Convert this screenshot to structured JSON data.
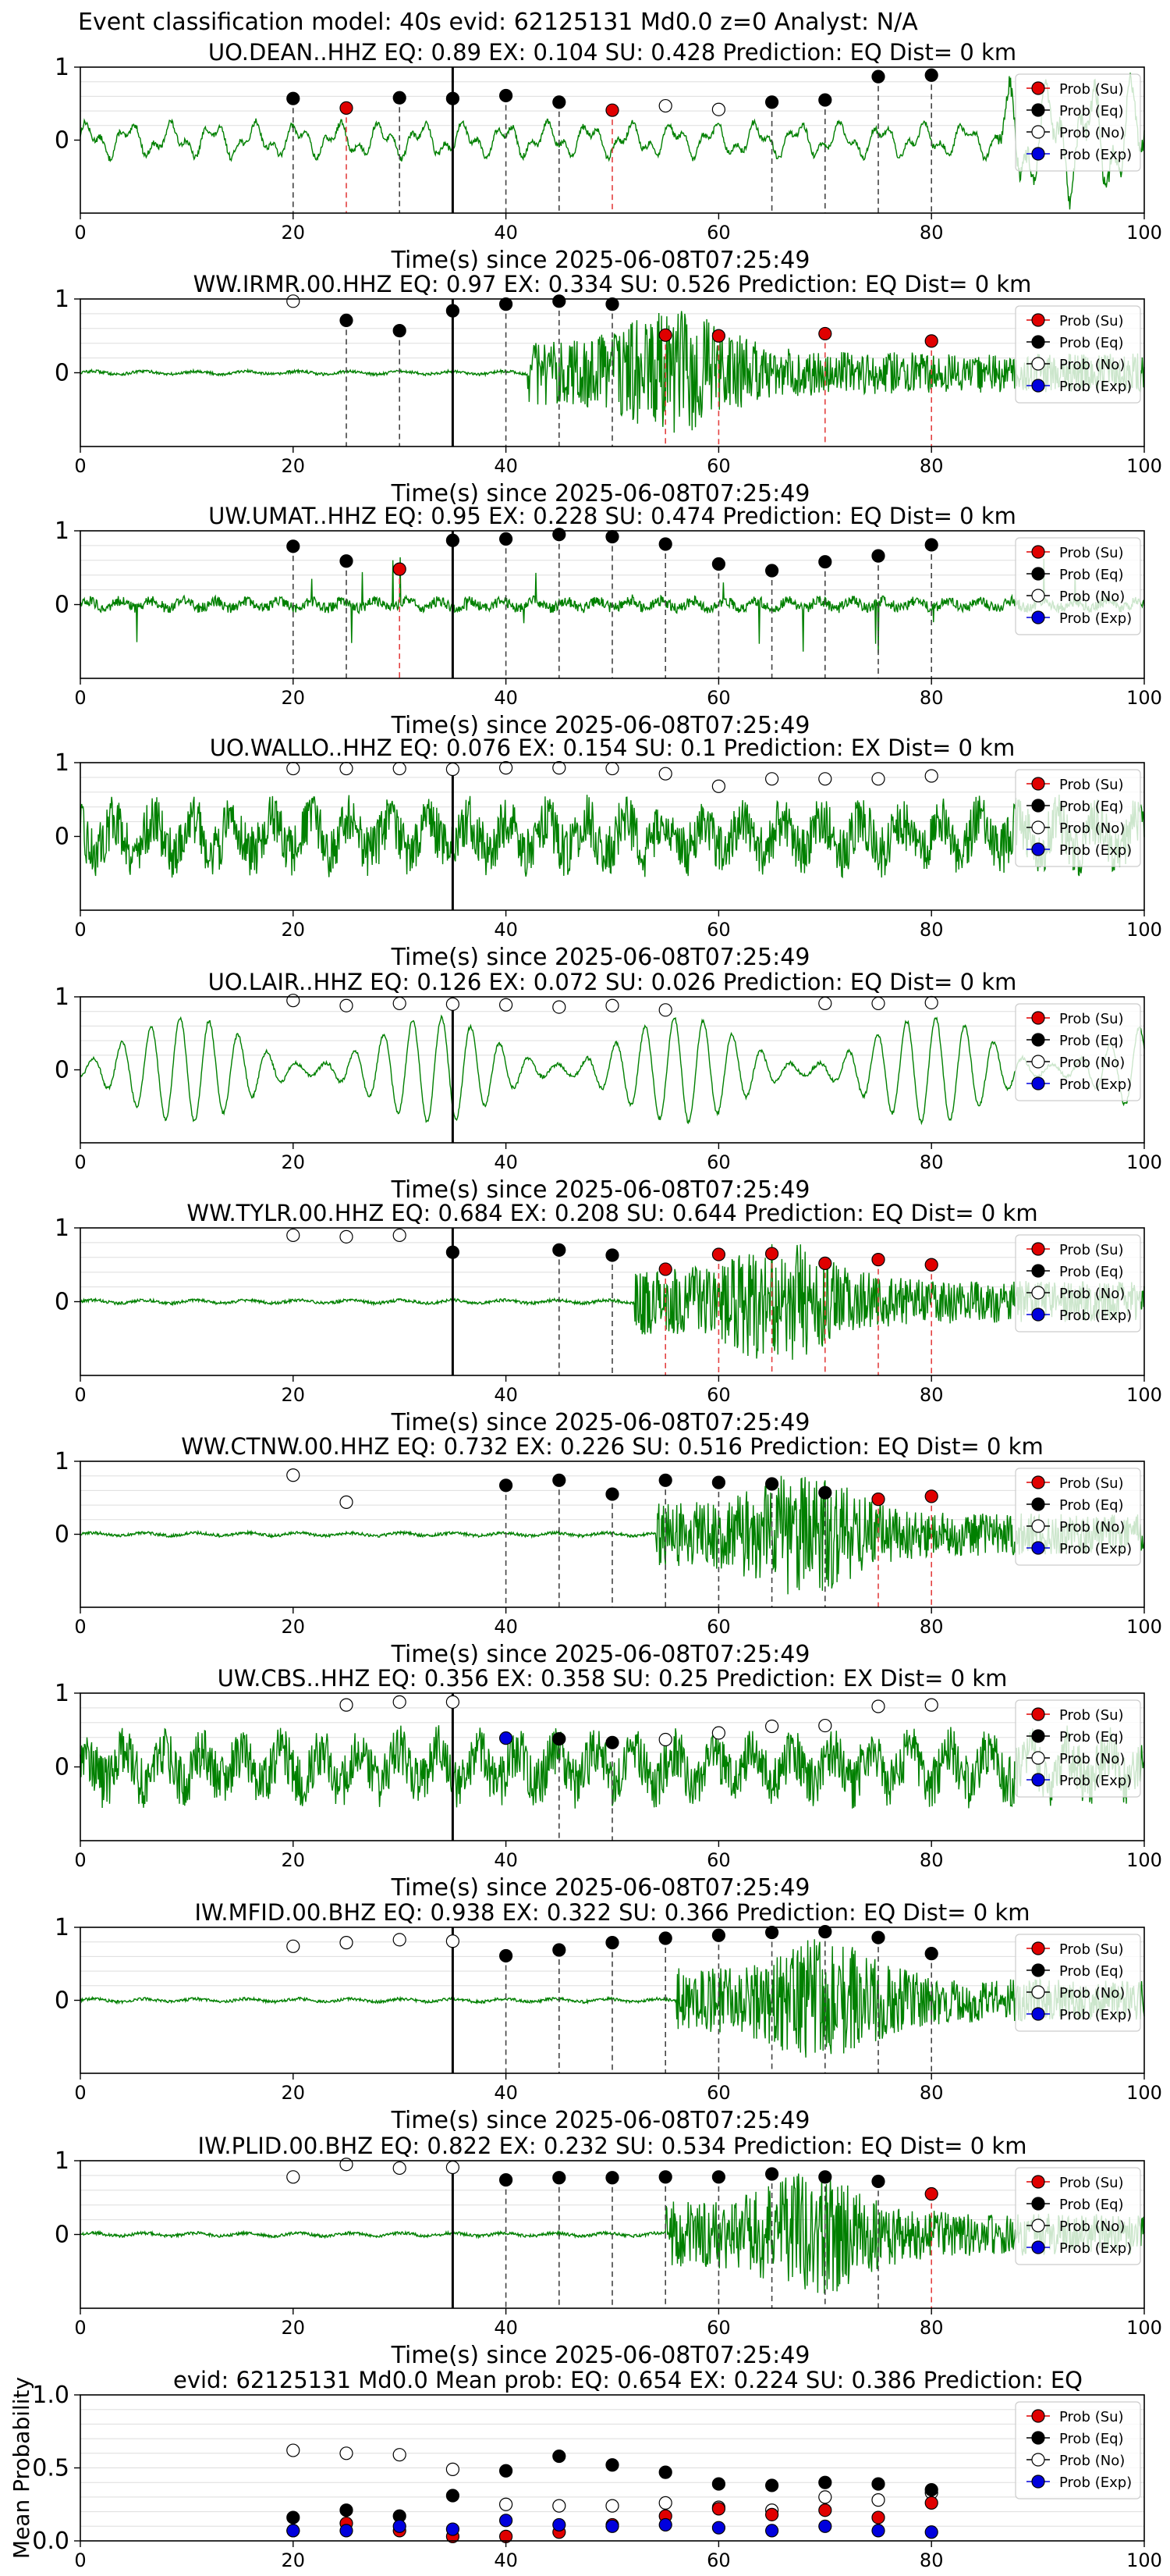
{
  "suptitle": "Event classification model: 40s evid: 62125131 Md0.0 z=0 Analyst: N/A",
  "legend_labels": [
    "Prob (Su)",
    "Prob (Eq)",
    "Prob (No)",
    "Prob (Exp)"
  ],
  "colors": {
    "trace": "#008000",
    "su": "#e00000",
    "eq": "#000000",
    "no": "#ffffff",
    "exp": "#0000dd"
  },
  "chart_data": [
    {
      "type": "line",
      "station": "UO.DEAN..HHZ",
      "title": "UO.DEAN..HHZ   EQ: 0.89  EX: 0.104  SU: 0.428   Prediction: EQ    Dist= 0 km",
      "xlabel": "Time(s) since 2025-06-08T07:25:49",
      "xlim": [
        0,
        100
      ],
      "ylim": [
        -1,
        1
      ],
      "xticks": [
        "0",
        "20",
        "40",
        "60",
        "80",
        "100"
      ],
      "yticks": [
        "1",
        "0"
      ],
      "grid": true,
      "legend": "right",
      "waveform": "lowfreq",
      "onset": 0,
      "points": [
        {
          "x": 20,
          "y": 0.57,
          "c": "eq"
        },
        {
          "x": 25,
          "y": 0.44,
          "c": "su"
        },
        {
          "x": 30,
          "y": 0.58,
          "c": "eq"
        },
        {
          "x": 35,
          "y": 0.57,
          "c": "eq"
        },
        {
          "x": 40,
          "y": 0.61,
          "c": "eq"
        },
        {
          "x": 45,
          "y": 0.52,
          "c": "eq"
        },
        {
          "x": 50,
          "y": 0.41,
          "c": "su"
        },
        {
          "x": 55,
          "y": 0.47,
          "c": "no"
        },
        {
          "x": 60,
          "y": 0.42,
          "c": "no"
        },
        {
          "x": 65,
          "y": 0.52,
          "c": "eq"
        },
        {
          "x": 70,
          "y": 0.55,
          "c": "eq"
        },
        {
          "x": 75,
          "y": 0.87,
          "c": "eq"
        },
        {
          "x": 80,
          "y": 0.89,
          "c": "eq"
        }
      ]
    },
    {
      "type": "line",
      "station": "WW.IRMR.00.HHZ",
      "title": "WW.IRMR.00.HHZ   EQ: 0.97  EX: 0.334  SU: 0.526   Prediction: EQ    Dist= 0 km",
      "xlabel": "Time(s) since 2025-06-08T07:25:49",
      "xlim": [
        0,
        100
      ],
      "ylim": [
        -1,
        1
      ],
      "xticks": [
        "0",
        "20",
        "40",
        "60",
        "80",
        "100"
      ],
      "yticks": [
        "1",
        "0"
      ],
      "grid": true,
      "legend": "right",
      "waveform": "event",
      "onset": 42,
      "points": [
        {
          "x": 20,
          "y": 0.97,
          "c": "no"
        },
        {
          "x": 25,
          "y": 0.71,
          "c": "eq"
        },
        {
          "x": 30,
          "y": 0.57,
          "c": "eq"
        },
        {
          "x": 35,
          "y": 0.84,
          "c": "eq"
        },
        {
          "x": 40,
          "y": 0.93,
          "c": "eq"
        },
        {
          "x": 45,
          "y": 0.97,
          "c": "eq"
        },
        {
          "x": 50,
          "y": 0.93,
          "c": "eq"
        },
        {
          "x": 55,
          "y": 0.51,
          "c": "su"
        },
        {
          "x": 60,
          "y": 0.5,
          "c": "su"
        },
        {
          "x": 70,
          "y": 0.53,
          "c": "su"
        },
        {
          "x": 80,
          "y": 0.43,
          "c": "su"
        }
      ]
    },
    {
      "type": "line",
      "station": "UW.UMAT..HHZ",
      "title": "UW.UMAT..HHZ   EQ: 0.95  EX: 0.228  SU: 0.474   Prediction: EQ    Dist= 0 km",
      "xlabel": "Time(s) since 2025-06-08T07:25:49",
      "xlim": [
        0,
        100
      ],
      "ylim": [
        -1,
        1
      ],
      "xticks": [
        "0",
        "20",
        "40",
        "60",
        "80",
        "100"
      ],
      "yticks": [
        "1",
        "0"
      ],
      "grid": true,
      "legend": "right",
      "waveform": "spiky",
      "onset": 0,
      "points": [
        {
          "x": 20,
          "y": 0.79,
          "c": "eq"
        },
        {
          "x": 25,
          "y": 0.59,
          "c": "eq"
        },
        {
          "x": 30,
          "y": 0.48,
          "c": "su"
        },
        {
          "x": 35,
          "y": 0.87,
          "c": "eq"
        },
        {
          "x": 40,
          "y": 0.89,
          "c": "eq"
        },
        {
          "x": 45,
          "y": 0.95,
          "c": "eq"
        },
        {
          "x": 50,
          "y": 0.92,
          "c": "eq"
        },
        {
          "x": 55,
          "y": 0.82,
          "c": "eq"
        },
        {
          "x": 60,
          "y": 0.55,
          "c": "eq"
        },
        {
          "x": 65,
          "y": 0.46,
          "c": "eq"
        },
        {
          "x": 70,
          "y": 0.58,
          "c": "eq"
        },
        {
          "x": 75,
          "y": 0.66,
          "c": "eq"
        },
        {
          "x": 80,
          "y": 0.81,
          "c": "eq"
        }
      ]
    },
    {
      "type": "line",
      "station": "UO.WALLO..HHZ",
      "title": "UO.WALLO..HHZ   EQ: 0.076  EX: 0.154  SU: 0.1   Prediction: EX    Dist= 0 km",
      "xlabel": "Time(s) since 2025-06-08T07:25:49",
      "xlim": [
        0,
        100
      ],
      "ylim": [
        -1,
        1
      ],
      "xticks": [
        "0",
        "20",
        "40",
        "60",
        "80",
        "100"
      ],
      "yticks": [
        "1",
        "0"
      ],
      "grid": true,
      "legend": "right",
      "waveform": "noisy",
      "onset": 0,
      "points": [
        {
          "x": 20,
          "y": 0.92,
          "c": "no"
        },
        {
          "x": 25,
          "y": 0.92,
          "c": "no"
        },
        {
          "x": 30,
          "y": 0.92,
          "c": "no"
        },
        {
          "x": 35,
          "y": 0.91,
          "c": "no"
        },
        {
          "x": 40,
          "y": 0.93,
          "c": "no"
        },
        {
          "x": 45,
          "y": 0.93,
          "c": "no"
        },
        {
          "x": 50,
          "y": 0.92,
          "c": "no"
        },
        {
          "x": 55,
          "y": 0.85,
          "c": "no"
        },
        {
          "x": 60,
          "y": 0.68,
          "c": "no"
        },
        {
          "x": 65,
          "y": 0.78,
          "c": "no"
        },
        {
          "x": 70,
          "y": 0.78,
          "c": "no"
        },
        {
          "x": 75,
          "y": 0.78,
          "c": "no"
        },
        {
          "x": 80,
          "y": 0.82,
          "c": "no"
        }
      ]
    },
    {
      "type": "line",
      "station": "UO.LAIR..HHZ",
      "title": "UO.LAIR..HHZ   EQ: 0.126  EX: 0.072  SU: 0.026   Prediction: EQ    Dist= 0 km",
      "xlabel": "Time(s) since 2025-06-08T07:25:49",
      "xlim": [
        0,
        100
      ],
      "ylim": [
        -1,
        1
      ],
      "xticks": [
        "0",
        "20",
        "40",
        "60",
        "80",
        "100"
      ],
      "yticks": [
        "1",
        "0"
      ],
      "grid": true,
      "legend": "right",
      "waveform": "sine",
      "onset": 0,
      "points": [
        {
          "x": 20,
          "y": 0.95,
          "c": "no"
        },
        {
          "x": 25,
          "y": 0.88,
          "c": "no"
        },
        {
          "x": 30,
          "y": 0.91,
          "c": "no"
        },
        {
          "x": 35,
          "y": 0.9,
          "c": "no"
        },
        {
          "x": 40,
          "y": 0.89,
          "c": "no"
        },
        {
          "x": 45,
          "y": 0.86,
          "c": "no"
        },
        {
          "x": 50,
          "y": 0.88,
          "c": "no"
        },
        {
          "x": 55,
          "y": 0.82,
          "c": "no"
        },
        {
          "x": 70,
          "y": 0.91,
          "c": "no"
        },
        {
          "x": 75,
          "y": 0.91,
          "c": "no"
        },
        {
          "x": 80,
          "y": 0.92,
          "c": "no"
        }
      ]
    },
    {
      "type": "line",
      "station": "WW.TYLR.00.HHZ",
      "title": "WW.TYLR.00.HHZ   EQ: 0.684  EX: 0.208  SU: 0.644   Prediction: EQ    Dist= 0 km",
      "xlabel": "Time(s) since 2025-06-08T07:25:49",
      "xlim": [
        0,
        100
      ],
      "ylim": [
        -1,
        1
      ],
      "xticks": [
        "0",
        "20",
        "40",
        "60",
        "80",
        "100"
      ],
      "yticks": [
        "1",
        "0"
      ],
      "grid": true,
      "legend": "right",
      "waveform": "event",
      "onset": 52,
      "points": [
        {
          "x": 20,
          "y": 0.9,
          "c": "no"
        },
        {
          "x": 25,
          "y": 0.88,
          "c": "no"
        },
        {
          "x": 30,
          "y": 0.9,
          "c": "no"
        },
        {
          "x": 35,
          "y": 0.67,
          "c": "eq"
        },
        {
          "x": 45,
          "y": 0.7,
          "c": "eq"
        },
        {
          "x": 50,
          "y": 0.63,
          "c": "eq"
        },
        {
          "x": 55,
          "y": 0.44,
          "c": "su"
        },
        {
          "x": 60,
          "y": 0.64,
          "c": "su"
        },
        {
          "x": 65,
          "y": 0.65,
          "c": "su"
        },
        {
          "x": 70,
          "y": 0.52,
          "c": "su"
        },
        {
          "x": 75,
          "y": 0.57,
          "c": "su"
        },
        {
          "x": 80,
          "y": 0.5,
          "c": "su"
        }
      ]
    },
    {
      "type": "line",
      "station": "WW.CTNW.00.HHZ",
      "title": "WW.CTNW.00.HHZ   EQ: 0.732  EX: 0.226  SU: 0.516   Prediction: EQ    Dist= 0 km",
      "xlabel": "Time(s) since 2025-06-08T07:25:49",
      "xlim": [
        0,
        100
      ],
      "ylim": [
        -1,
        1
      ],
      "xticks": [
        "0",
        "20",
        "40",
        "60",
        "80",
        "100"
      ],
      "yticks": [
        "1",
        "0"
      ],
      "grid": true,
      "legend": "right",
      "waveform": "event",
      "onset": 54,
      "points": [
        {
          "x": 20,
          "y": 0.81,
          "c": "no"
        },
        {
          "x": 25,
          "y": 0.44,
          "c": "no"
        },
        {
          "x": 40,
          "y": 0.67,
          "c": "eq"
        },
        {
          "x": 45,
          "y": 0.74,
          "c": "eq"
        },
        {
          "x": 50,
          "y": 0.55,
          "c": "eq"
        },
        {
          "x": 55,
          "y": 0.74,
          "c": "eq"
        },
        {
          "x": 60,
          "y": 0.71,
          "c": "eq"
        },
        {
          "x": 65,
          "y": 0.69,
          "c": "eq"
        },
        {
          "x": 70,
          "y": 0.57,
          "c": "eq"
        },
        {
          "x": 75,
          "y": 0.48,
          "c": "su"
        },
        {
          "x": 80,
          "y": 0.52,
          "c": "su"
        }
      ]
    },
    {
      "type": "line",
      "station": "UW.CBS..HHZ",
      "title": "UW.CBS..HHZ   EQ: 0.356  EX: 0.358  SU: 0.25   Prediction: EX    Dist= 0 km",
      "xlabel": "Time(s) since 2025-06-08T07:25:49",
      "xlim": [
        0,
        100
      ],
      "ylim": [
        -1,
        1
      ],
      "xticks": [
        "0",
        "20",
        "40",
        "60",
        "80",
        "100"
      ],
      "yticks": [
        "1",
        "0"
      ],
      "grid": true,
      "legend": "right",
      "waveform": "noisy",
      "onset": 0,
      "points": [
        {
          "x": 25,
          "y": 0.84,
          "c": "no"
        },
        {
          "x": 30,
          "y": 0.88,
          "c": "no"
        },
        {
          "x": 35,
          "y": 0.88,
          "c": "no"
        },
        {
          "x": 40,
          "y": 0.39,
          "c": "exp"
        },
        {
          "x": 45,
          "y": 0.38,
          "c": "eq"
        },
        {
          "x": 50,
          "y": 0.33,
          "c": "eq"
        },
        {
          "x": 55,
          "y": 0.37,
          "c": "no"
        },
        {
          "x": 60,
          "y": 0.46,
          "c": "no"
        },
        {
          "x": 65,
          "y": 0.55,
          "c": "no"
        },
        {
          "x": 70,
          "y": 0.56,
          "c": "no"
        },
        {
          "x": 75,
          "y": 0.82,
          "c": "no"
        },
        {
          "x": 80,
          "y": 0.84,
          "c": "no"
        }
      ]
    },
    {
      "type": "line",
      "station": "IW.MFID.00.BHZ",
      "title": "IW.MFID.00.BHZ   EQ: 0.938  EX: 0.322  SU: 0.366   Prediction: EQ    Dist= 0 km",
      "xlabel": "Time(s) since 2025-06-08T07:25:49",
      "xlim": [
        0,
        100
      ],
      "ylim": [
        -1,
        1
      ],
      "xticks": [
        "0",
        "20",
        "40",
        "60",
        "80",
        "100"
      ],
      "yticks": [
        "1",
        "0"
      ],
      "grid": true,
      "legend": "right",
      "waveform": "event",
      "onset": 56,
      "points": [
        {
          "x": 20,
          "y": 0.74,
          "c": "no"
        },
        {
          "x": 25,
          "y": 0.79,
          "c": "no"
        },
        {
          "x": 30,
          "y": 0.83,
          "c": "no"
        },
        {
          "x": 35,
          "y": 0.81,
          "c": "no"
        },
        {
          "x": 40,
          "y": 0.61,
          "c": "eq"
        },
        {
          "x": 45,
          "y": 0.69,
          "c": "eq"
        },
        {
          "x": 50,
          "y": 0.79,
          "c": "eq"
        },
        {
          "x": 55,
          "y": 0.85,
          "c": "eq"
        },
        {
          "x": 60,
          "y": 0.89,
          "c": "eq"
        },
        {
          "x": 65,
          "y": 0.93,
          "c": "eq"
        },
        {
          "x": 70,
          "y": 0.94,
          "c": "eq"
        },
        {
          "x": 75,
          "y": 0.86,
          "c": "eq"
        },
        {
          "x": 80,
          "y": 0.64,
          "c": "eq"
        }
      ]
    },
    {
      "type": "line",
      "station": "IW.PLID.00.BHZ",
      "title": "IW.PLID.00.BHZ   EQ: 0.822  EX: 0.232  SU: 0.534   Prediction: EQ    Dist= 0 km",
      "xlabel": "Time(s) since 2025-06-08T07:25:49",
      "xlim": [
        0,
        100
      ],
      "ylim": [
        -1,
        1
      ],
      "xticks": [
        "0",
        "20",
        "40",
        "60",
        "80",
        "100"
      ],
      "yticks": [
        "1",
        "0"
      ],
      "grid": true,
      "legend": "right",
      "waveform": "event",
      "onset": 55,
      "points": [
        {
          "x": 20,
          "y": 0.78,
          "c": "no"
        },
        {
          "x": 25,
          "y": 0.95,
          "c": "no"
        },
        {
          "x": 30,
          "y": 0.9,
          "c": "no"
        },
        {
          "x": 35,
          "y": 0.91,
          "c": "no"
        },
        {
          "x": 40,
          "y": 0.74,
          "c": "eq"
        },
        {
          "x": 45,
          "y": 0.77,
          "c": "eq"
        },
        {
          "x": 50,
          "y": 0.77,
          "c": "eq"
        },
        {
          "x": 55,
          "y": 0.78,
          "c": "eq"
        },
        {
          "x": 60,
          "y": 0.78,
          "c": "eq"
        },
        {
          "x": 65,
          "y": 0.82,
          "c": "eq"
        },
        {
          "x": 70,
          "y": 0.78,
          "c": "eq"
        },
        {
          "x": 75,
          "y": 0.72,
          "c": "eq"
        },
        {
          "x": 80,
          "y": 0.55,
          "c": "su"
        }
      ]
    },
    {
      "type": "scatter",
      "station": "mean",
      "title": "evid: 62125131  Md0.0   Mean prob:   EQ: 0.654  EX: 0.224  SU: 0.386   Prediction: EQ",
      "ylabel": "Mean Probability",
      "xlabel": "",
      "xlim": [
        0,
        100
      ],
      "ylim": [
        0,
        1
      ],
      "xticks": [
        "0",
        "20",
        "40",
        "60",
        "80",
        "100"
      ],
      "yticks": [
        "1.0",
        "0.5",
        "0.0"
      ],
      "grid": true,
      "legend": "right",
      "x": [
        20,
        25,
        30,
        35,
        40,
        45,
        50,
        55,
        60,
        65,
        70,
        75,
        80
      ],
      "series": [
        {
          "name": "Prob (No)",
          "c": "no",
          "values": [
            0.62,
            0.6,
            0.59,
            0.49,
            0.25,
            0.24,
            0.24,
            0.26,
            0.23,
            0.21,
            0.3,
            0.28,
            0.33
          ]
        },
        {
          "name": "Prob (Eq)",
          "c": "eq",
          "values": [
            0.16,
            0.21,
            0.17,
            0.31,
            0.48,
            0.58,
            0.52,
            0.47,
            0.39,
            0.38,
            0.4,
            0.39,
            0.35
          ]
        },
        {
          "name": "Prob (Su)",
          "c": "su",
          "values": [
            0.07,
            0.12,
            0.07,
            0.03,
            0.03,
            0.06,
            0.11,
            0.17,
            0.22,
            0.18,
            0.21,
            0.16,
            0.26
          ]
        },
        {
          "name": "Prob (Exp)",
          "c": "exp",
          "values": [
            0.07,
            0.07,
            0.1,
            0.08,
            0.14,
            0.11,
            0.1,
            0.11,
            0.09,
            0.07,
            0.1,
            0.07,
            0.06
          ]
        }
      ]
    }
  ]
}
